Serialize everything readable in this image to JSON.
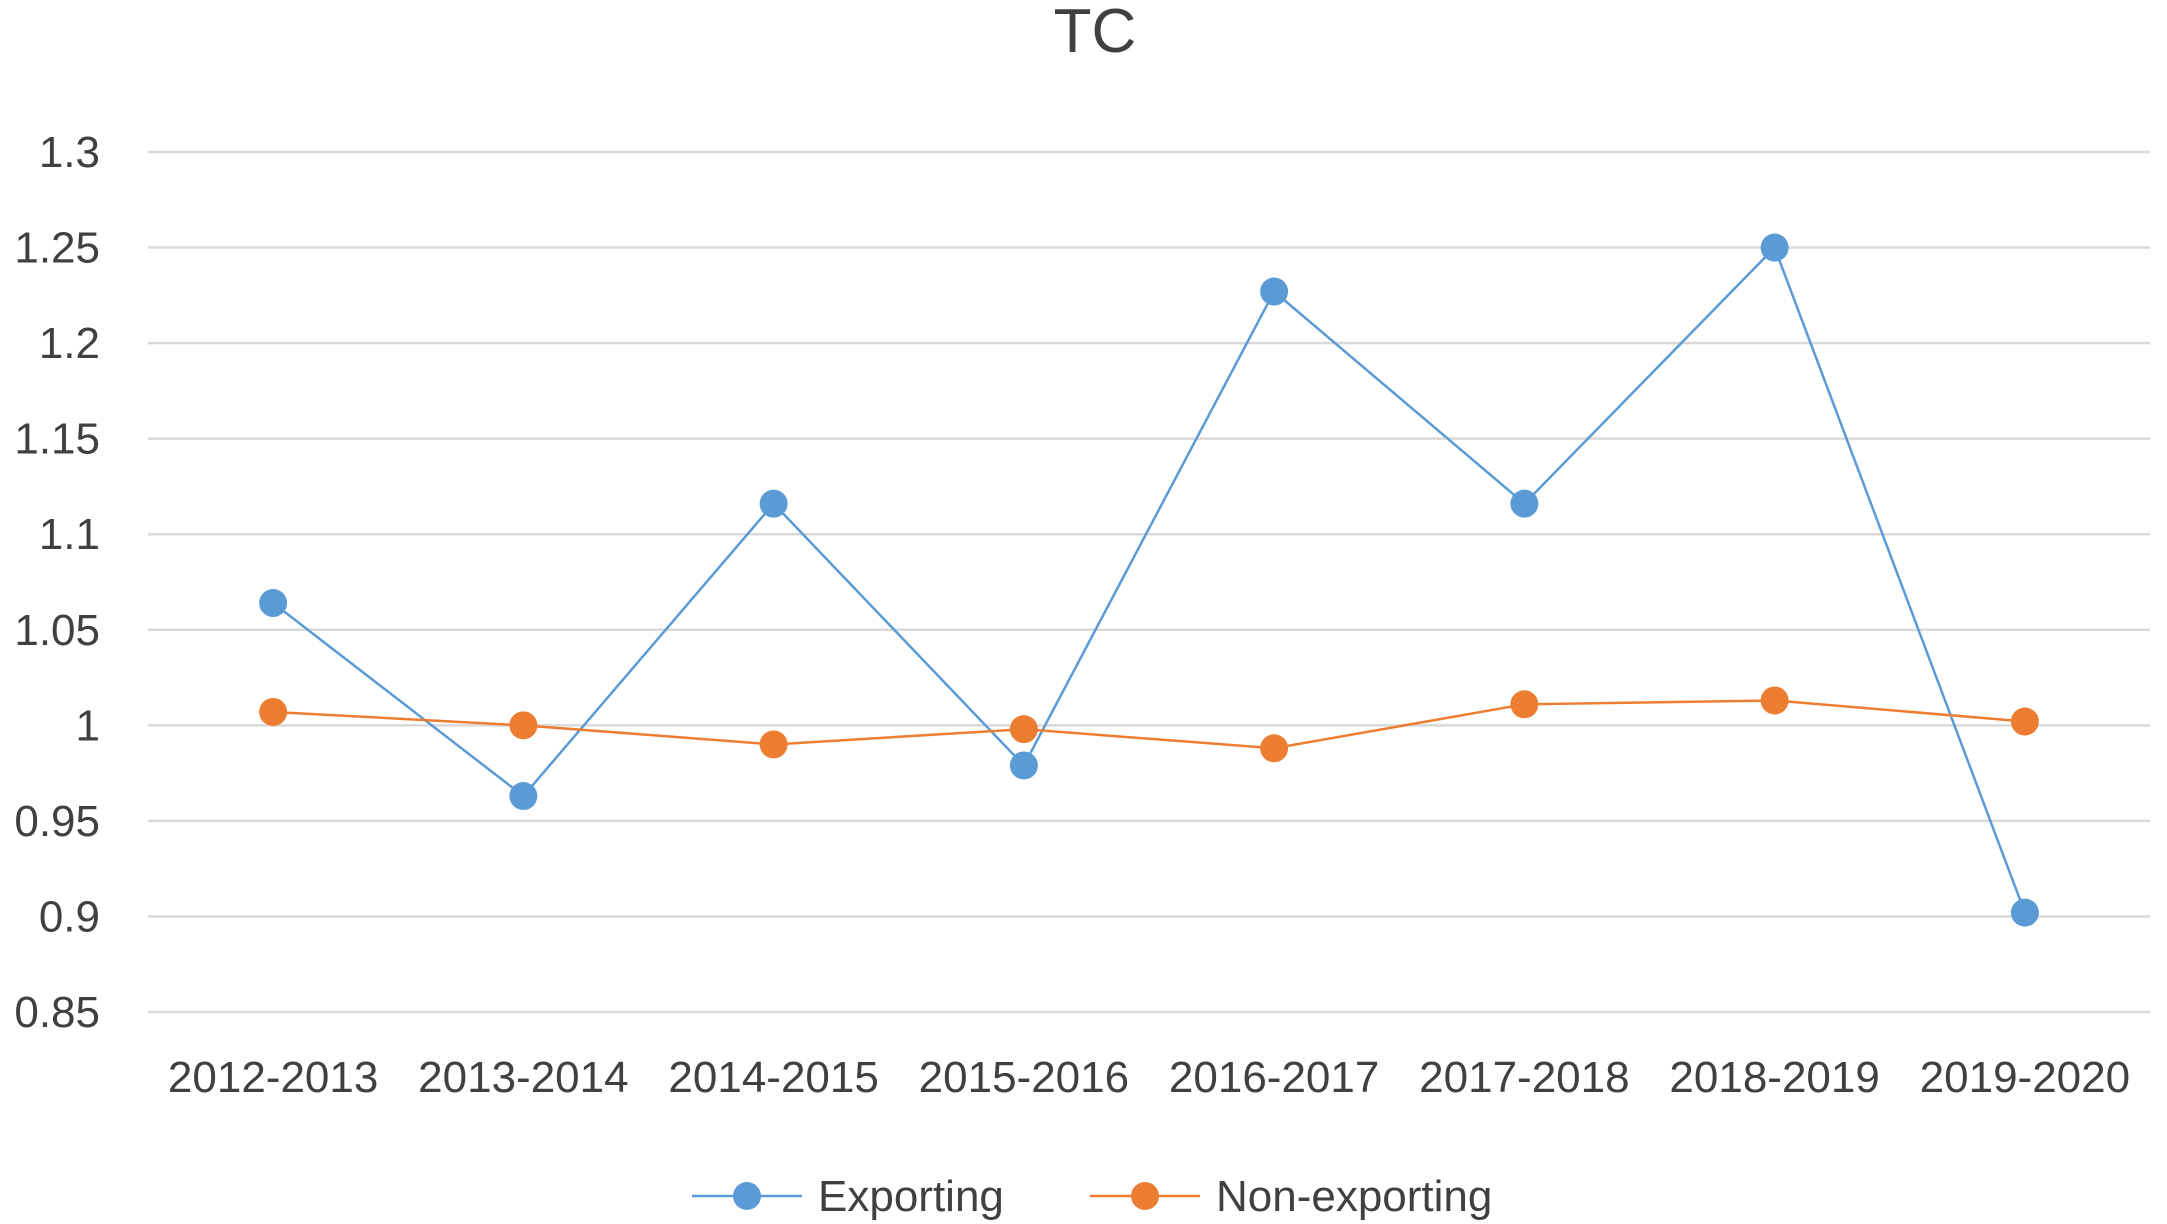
{
  "chart_data": {
    "type": "line",
    "title": "TC",
    "xlabel": "",
    "ylabel": "",
    "categories": [
      "2012-2013",
      "2013-2014",
      "2014-2015",
      "2015-2016",
      "2016-2017",
      "2017-2018",
      "2018-2019",
      "2019-2020"
    ],
    "ylim": [
      0.85,
      1.3
    ],
    "yticks": [
      "0.85",
      "0.9",
      "0.95",
      "1",
      "1.05",
      "1.1",
      "1.15",
      "1.2",
      "1.25",
      "1.3"
    ],
    "grid": true,
    "legend_position": "bottom",
    "series": [
      {
        "name": "Exporting",
        "color": "#5b9bd5",
        "values": [
          1.064,
          0.963,
          1.116,
          0.979,
          1.227,
          1.116,
          1.25,
          0.902
        ]
      },
      {
        "name": "Non-exporting",
        "color": "#ed7d31",
        "values": [
          1.007,
          1.0,
          0.99,
          0.998,
          0.988,
          1.011,
          1.013,
          1.002
        ]
      }
    ]
  }
}
